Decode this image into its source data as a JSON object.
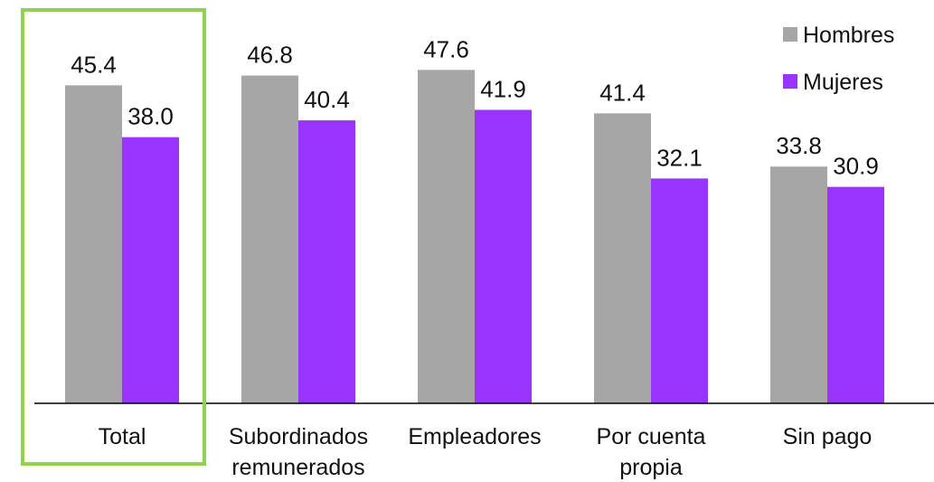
{
  "chart_data": {
    "type": "bar",
    "categories": [
      [
        "Total"
      ],
      [
        "Subordinados",
        "remunerados"
      ],
      [
        "Empleadores"
      ],
      [
        "Por cuenta",
        "propia"
      ],
      [
        "Sin pago"
      ]
    ],
    "series": [
      {
        "name": "Hombres",
        "color": "#a6a6a6",
        "values": [
          45.4,
          46.8,
          47.6,
          41.4,
          33.8
        ],
        "labels": [
          "45.4",
          "46.8",
          "47.6",
          "41.4",
          "33.8"
        ]
      },
      {
        "name": "Mujeres",
        "color": "#9933ff",
        "values": [
          38.0,
          40.4,
          41.9,
          32.1,
          30.9
        ],
        "labels": [
          "38.0",
          "40.4",
          "41.9",
          "32.1",
          "30.9"
        ]
      }
    ],
    "ylim": [
      0,
      55
    ],
    "grid": false,
    "legend": "top-right",
    "highlight": {
      "category_index": 0,
      "color": "#92d050"
    }
  }
}
